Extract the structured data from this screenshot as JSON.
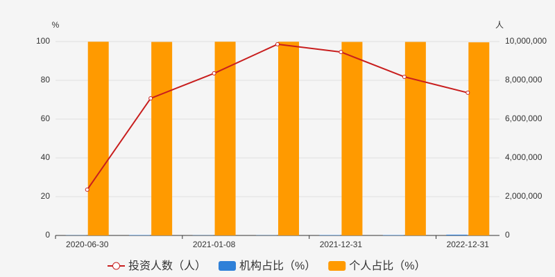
{
  "chart_data": {
    "type": "bar",
    "y_unit": "%",
    "y2_unit": "人",
    "categories": [
      "2020-06-30",
      null,
      "2021-01-08",
      null,
      "2021-12-31",
      null,
      "2022-12-31"
    ],
    "series": [
      {
        "name": "投资人数（人）",
        "type": "line",
        "axis": "y2",
        "color": "#c81e1e",
        "values": [
          2360000,
          7070000,
          8360000,
          9860000,
          9460000,
          8180000,
          7360000
        ]
      },
      {
        "name": "机构占比（%）",
        "type": "bar",
        "color": "#2f80d8",
        "values": [
          0.1,
          0.2,
          0.1,
          0.1,
          0.2,
          0.2,
          0.4
        ]
      },
      {
        "name": "个人占比（%）",
        "type": "bar",
        "color": "#ff9a00",
        "values": [
          99.9,
          99.8,
          99.9,
          99.9,
          99.8,
          99.8,
          99.6
        ]
      }
    ],
    "ylim": [
      0,
      100
    ],
    "yticks": [
      0,
      20,
      40,
      60,
      80,
      100
    ],
    "y2lim": [
      0,
      10000000
    ],
    "y2ticks": [
      0,
      {
        "value": 2000000,
        "label": "2,000,000"
      },
      {
        "value": 4000000,
        "label": "4,000,000"
      },
      {
        "value": 6000000,
        "label": "6,000,000"
      },
      {
        "value": 8000000,
        "label": "8,000,000"
      },
      {
        "value": 10000000,
        "label": "10,000,000"
      }
    ]
  }
}
